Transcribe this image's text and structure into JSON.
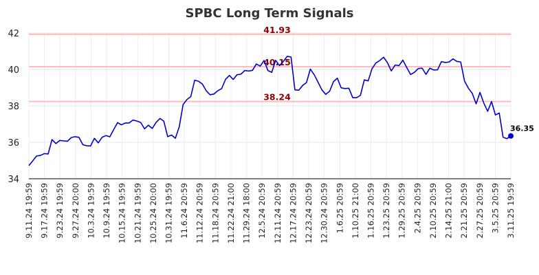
{
  "chart_data": {
    "type": "line",
    "title": "SPBC Long Term Signals",
    "xlabel": "",
    "ylabel": "",
    "ylim": [
      34,
      42
    ],
    "yticks": [
      "34",
      "36",
      "38",
      "40",
      "42"
    ],
    "grid": true,
    "colors": {
      "line": "#0000cc",
      "level": "#ffbbbb",
      "level_label": "#8b0000",
      "title": "#333333"
    },
    "x_tick_labels": [
      "9.11.24 19:59",
      "9.17.24 19:59",
      "9.23.24 19:59",
      "9.27.24 20:00",
      "10.3.24 19:59",
      "10.9.24 19:59",
      "10.15.24 19:59",
      "10.21.24 19:59",
      "10.25.24 20:00",
      "10.31.24 19:59",
      "11.6.24 20:59",
      "11.12.24 20:59",
      "11.18.24 20:59",
      "11.22.24 21:00",
      "11.29.24 18:00",
      "12.5.24 20:59",
      "12.11.24 20:59",
      "12.17.24 20:59",
      "12.23.24 20:59",
      "12.30.24 20:59",
      "1.6.25 20:59",
      "1.10.25 21:00",
      "1.16.25 20:59",
      "1.23.25 20:59",
      "1.29.25 20:59",
      "2.4.25 20:59",
      "2.10.25 20:59",
      "2.14.25 21:00",
      "2.21.25 20:59",
      "2.27.25 20:59",
      "3.5.25 20:59",
      "3.11.25 19:59"
    ],
    "levels": [
      {
        "value": 41.93,
        "label": "41.93"
      },
      {
        "value": 40.15,
        "label": "40.15"
      },
      {
        "value": 38.24,
        "label": "38.24"
      }
    ],
    "series": [
      {
        "values": [
          34.72,
          34.98,
          35.25,
          35.28,
          35.38,
          35.36,
          36.15,
          35.93,
          36.1,
          36.08,
          36.06,
          36.26,
          36.31,
          36.27,
          35.87,
          35.81,
          35.8,
          36.22,
          35.97,
          36.28,
          36.37,
          36.3,
          36.7,
          37.08,
          36.96,
          37.06,
          37.06,
          37.22,
          37.17,
          37.09,
          36.74,
          36.94,
          36.76,
          37.09,
          37.31,
          37.16,
          36.31,
          36.4,
          36.22,
          36.85,
          38.07,
          38.35,
          38.51,
          39.41,
          39.35,
          39.2,
          38.83,
          38.61,
          38.65,
          38.83,
          38.95,
          39.45,
          39.67,
          39.45,
          39.71,
          39.74,
          39.94,
          39.91,
          39.95,
          40.3,
          40.18,
          40.49,
          39.94,
          39.84,
          40.5,
          40.21,
          40.44,
          40.72,
          40.68,
          38.88,
          38.86,
          39.12,
          39.28,
          40.02,
          39.71,
          39.3,
          38.88,
          38.63,
          38.8,
          39.33,
          39.52,
          38.99,
          38.95,
          38.97,
          38.45,
          38.45,
          38.58,
          39.43,
          39.37,
          40.04,
          40.35,
          40.49,
          40.67,
          40.37,
          39.92,
          40.24,
          40.21,
          40.51,
          40.11,
          39.72,
          39.84,
          40.05,
          40.07,
          39.73,
          40.07,
          39.97,
          39.98,
          40.43,
          40.38,
          40.41,
          40.58,
          40.44,
          40.41,
          39.36,
          38.97,
          38.69,
          38.11,
          38.74,
          38.15,
          37.7,
          38.24,
          37.5,
          37.61,
          36.28,
          36.2,
          36.35
        ]
      }
    ],
    "last_point": {
      "value": 36.35,
      "label": "36.35"
    }
  }
}
